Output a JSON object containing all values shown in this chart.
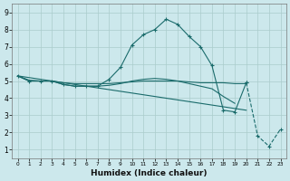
{
  "xlabel": "Humidex (Indice chaleur)",
  "background_color": "#cce8ec",
  "grid_color": "#aacccc",
  "line_color": "#1a6b6b",
  "xlim": [
    -0.5,
    23.5
  ],
  "ylim": [
    0.5,
    9.5
  ],
  "yticks": [
    1,
    2,
    3,
    4,
    5,
    6,
    7,
    8,
    9
  ],
  "xticks": [
    0,
    1,
    2,
    3,
    4,
    5,
    6,
    7,
    8,
    9,
    10,
    11,
    12,
    13,
    14,
    15,
    16,
    17,
    18,
    19,
    20,
    21,
    22,
    23
  ],
  "line1_x": [
    0,
    1,
    2,
    3,
    4,
    5,
    6,
    7,
    8,
    9,
    10,
    11,
    12,
    13,
    14,
    15,
    16,
    17,
    18,
    19,
    20
  ],
  "line1_y": [
    5.3,
    5.0,
    5.0,
    5.0,
    4.8,
    4.7,
    4.7,
    4.7,
    5.1,
    5.8,
    7.1,
    7.7,
    8.0,
    8.6,
    8.3,
    7.6,
    7.0,
    5.9,
    3.3,
    3.2,
    4.9
  ],
  "line2_x": [
    20,
    21,
    22,
    23
  ],
  "line2_y": [
    4.9,
    1.8,
    1.2,
    2.2
  ],
  "line3_x": [
    0,
    1,
    2,
    3,
    4,
    5,
    6,
    7,
    8,
    9,
    10,
    11,
    12,
    13,
    14,
    15,
    16,
    17,
    18,
    19,
    20
  ],
  "line3_y": [
    5.3,
    5.05,
    5.0,
    5.0,
    4.9,
    4.85,
    4.85,
    4.85,
    4.85,
    4.9,
    4.95,
    5.0,
    5.0,
    5.0,
    5.0,
    4.95,
    4.9,
    4.9,
    4.9,
    4.85,
    4.85
  ],
  "line4_x": [
    0,
    20
  ],
  "line4_y": [
    5.3,
    3.3
  ],
  "line5_x": [
    0,
    1,
    2,
    3,
    4,
    5,
    6,
    7,
    8,
    9,
    10,
    11,
    12,
    13,
    14,
    15,
    16,
    17,
    18,
    19
  ],
  "line5_y": [
    5.3,
    5.0,
    5.0,
    5.0,
    4.8,
    4.7,
    4.7,
    4.7,
    4.75,
    4.85,
    5.0,
    5.1,
    5.15,
    5.1,
    5.0,
    4.85,
    4.7,
    4.55,
    4.1,
    3.7
  ]
}
